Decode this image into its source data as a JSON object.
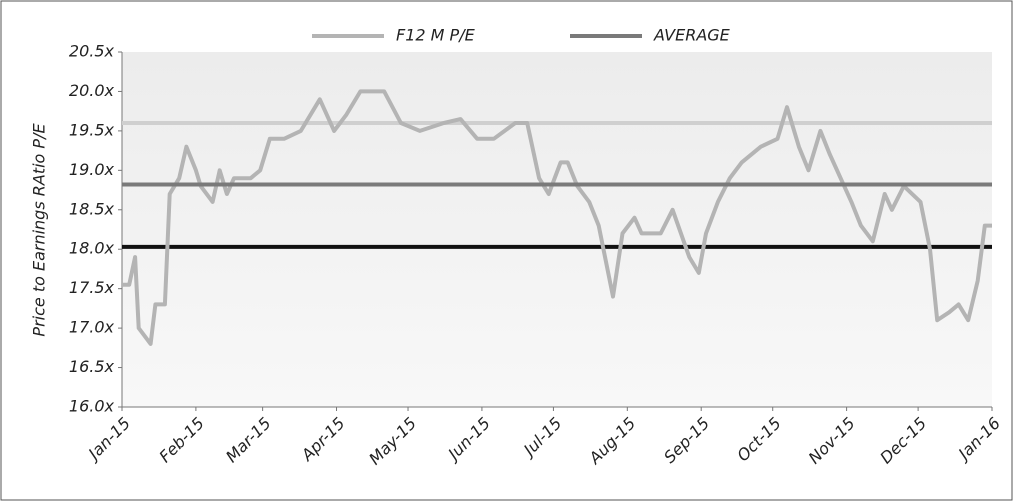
{
  "chart_data": {
    "type": "line",
    "y_label": "Price  to Earnings RAtio P/E",
    "xlim": [
      0,
      365
    ],
    "xticks": [
      {
        "value": 0,
        "label": "Jan-15"
      },
      {
        "value": 31,
        "label": "Feb-15"
      },
      {
        "value": 59,
        "label": "Mar-15"
      },
      {
        "value": 90,
        "label": "Apr-15"
      },
      {
        "value": 120,
        "label": "May-15"
      },
      {
        "value": 151,
        "label": "Jun-15"
      },
      {
        "value": 181,
        "label": "Jul-15"
      },
      {
        "value": 212,
        "label": "Aug-15"
      },
      {
        "value": 243,
        "label": "Sep-15"
      },
      {
        "value": 273,
        "label": "Oct-15"
      },
      {
        "value": 304,
        "label": "Nov-15"
      },
      {
        "value": 334,
        "label": "Dec-15"
      },
      {
        "value": 365,
        "label": "Jan-16"
      }
    ],
    "ylim": [
      16.0,
      20.5
    ],
    "yticks": [
      {
        "value": 16.0,
        "label": "16.0x"
      },
      {
        "value": 16.5,
        "label": "16.5x"
      },
      {
        "value": 17.0,
        "label": "17.0x"
      },
      {
        "value": 17.5,
        "label": "17.5x"
      },
      {
        "value": 18.0,
        "label": "18.0x"
      },
      {
        "value": 18.5,
        "label": "18.5x"
      },
      {
        "value": 19.0,
        "label": "19.0x"
      },
      {
        "value": 19.5,
        "label": "19.5x"
      },
      {
        "value": 20.0,
        "label": "20.0x"
      },
      {
        "value": 20.5,
        "label": "20.5x"
      }
    ],
    "x": [
      0,
      3,
      5.5,
      7,
      12,
      14,
      18,
      20,
      24,
      27,
      31,
      33,
      38,
      41,
      44,
      47,
      54,
      58,
      62,
      68,
      75,
      83,
      89,
      94,
      100,
      110,
      117,
      125,
      135,
      142,
      149,
      156,
      165,
      170,
      175,
      179,
      184,
      187,
      191,
      196,
      200,
      206,
      210,
      215,
      218,
      226,
      231,
      238,
      242,
      245,
      250,
      255,
      260,
      268,
      275,
      279,
      284,
      288,
      293,
      297,
      303,
      306,
      310,
      315,
      320,
      323,
      328,
      335,
      339,
      342,
      347,
      351,
      355,
      359,
      362,
      365
    ],
    "series": [
      {
        "name": "F12 M P/E",
        "color": "#b4b4b4",
        "values": [
          17.55,
          17.55,
          17.9,
          17.0,
          16.8,
          17.3,
          17.3,
          18.7,
          18.9,
          19.3,
          19.0,
          18.8,
          18.6,
          19.0,
          18.7,
          18.9,
          18.9,
          19.0,
          19.4,
          19.4,
          19.5,
          19.9,
          19.5,
          19.7,
          20.0,
          20.0,
          19.6,
          19.5,
          19.6,
          19.65,
          19.4,
          19.4,
          19.6,
          19.6,
          18.9,
          18.7,
          19.1,
          19.1,
          18.8,
          18.6,
          18.3,
          17.4,
          18.2,
          18.4,
          18.2,
          18.2,
          18.5,
          17.9,
          17.7,
          18.2,
          18.6,
          18.9,
          19.1,
          19.3,
          19.4,
          19.8,
          19.3,
          19.0,
          19.5,
          19.2,
          18.8,
          18.6,
          18.3,
          18.1,
          18.7,
          18.5,
          18.8,
          18.6,
          18.0,
          17.1,
          17.2,
          17.3,
          17.1,
          17.6,
          18.3,
          18.3
        ]
      },
      {
        "name": "AVERAGE",
        "color": "#7a7a7a",
        "value": 18.82
      }
    ],
    "reference_lines": [
      {
        "value": 19.6,
        "color": "#cfcfcf"
      },
      {
        "value": 18.03,
        "color": "#111111"
      }
    ]
  }
}
